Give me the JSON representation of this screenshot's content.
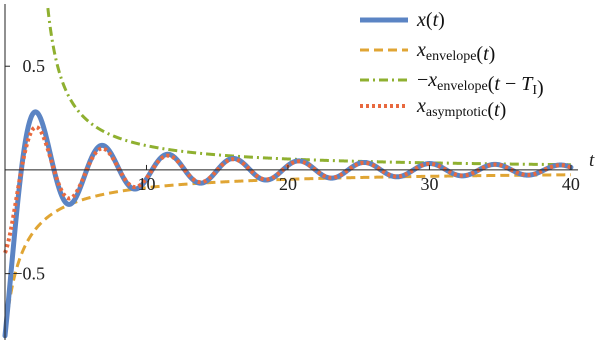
{
  "chart_data": {
    "type": "line",
    "title": "",
    "xlabel": "t",
    "ylabel": "",
    "xlim": [
      0,
      40.5
    ],
    "ylim": [
      -0.82,
      0.8
    ],
    "x_ticks": [
      10,
      20,
      30,
      40
    ],
    "y_ticks": [
      -0.5,
      0.5
    ],
    "x_tick_labels": [
      "10",
      "20",
      "30",
      "40"
    ],
    "y_tick_labels": [
      "−0.5",
      "0.5"
    ],
    "grid": false,
    "legend_position": "top-right",
    "model": {
      "x0": -0.8,
      "omega": 1.36,
      "tau": 1.2,
      "t_shift": 3.0,
      "asymptotic_offset_t": 1.2,
      "t_start": 0,
      "t_end": 40
    },
    "series": [
      {
        "id": "x",
        "legend": {
          "main": "x",
          "sub": "",
          "args": "(t)"
        },
        "color": "#5b84c4",
        "style": "solid",
        "width": 5
      },
      {
        "id": "envelope",
        "legend": {
          "main": "x",
          "sub": "envelope",
          "args": "(t)"
        },
        "color": "#e0a534",
        "style": "dashed",
        "width": 3
      },
      {
        "id": "neg_envelope_shift",
        "legend": {
          "prefix": "−",
          "main": "x",
          "sub": "envelope",
          "args": "(t − ",
          "argsVar": "T",
          "argsSub": "I",
          "argsClose": ")"
        },
        "color": "#8fb030",
        "style": "dashdot",
        "width": 3
      },
      {
        "id": "asymptotic",
        "legend": {
          "main": "x",
          "sub": "asymptotic",
          "args": "(t)"
        },
        "color": "#e8693f",
        "style": "dotted",
        "width": 4
      }
    ]
  }
}
